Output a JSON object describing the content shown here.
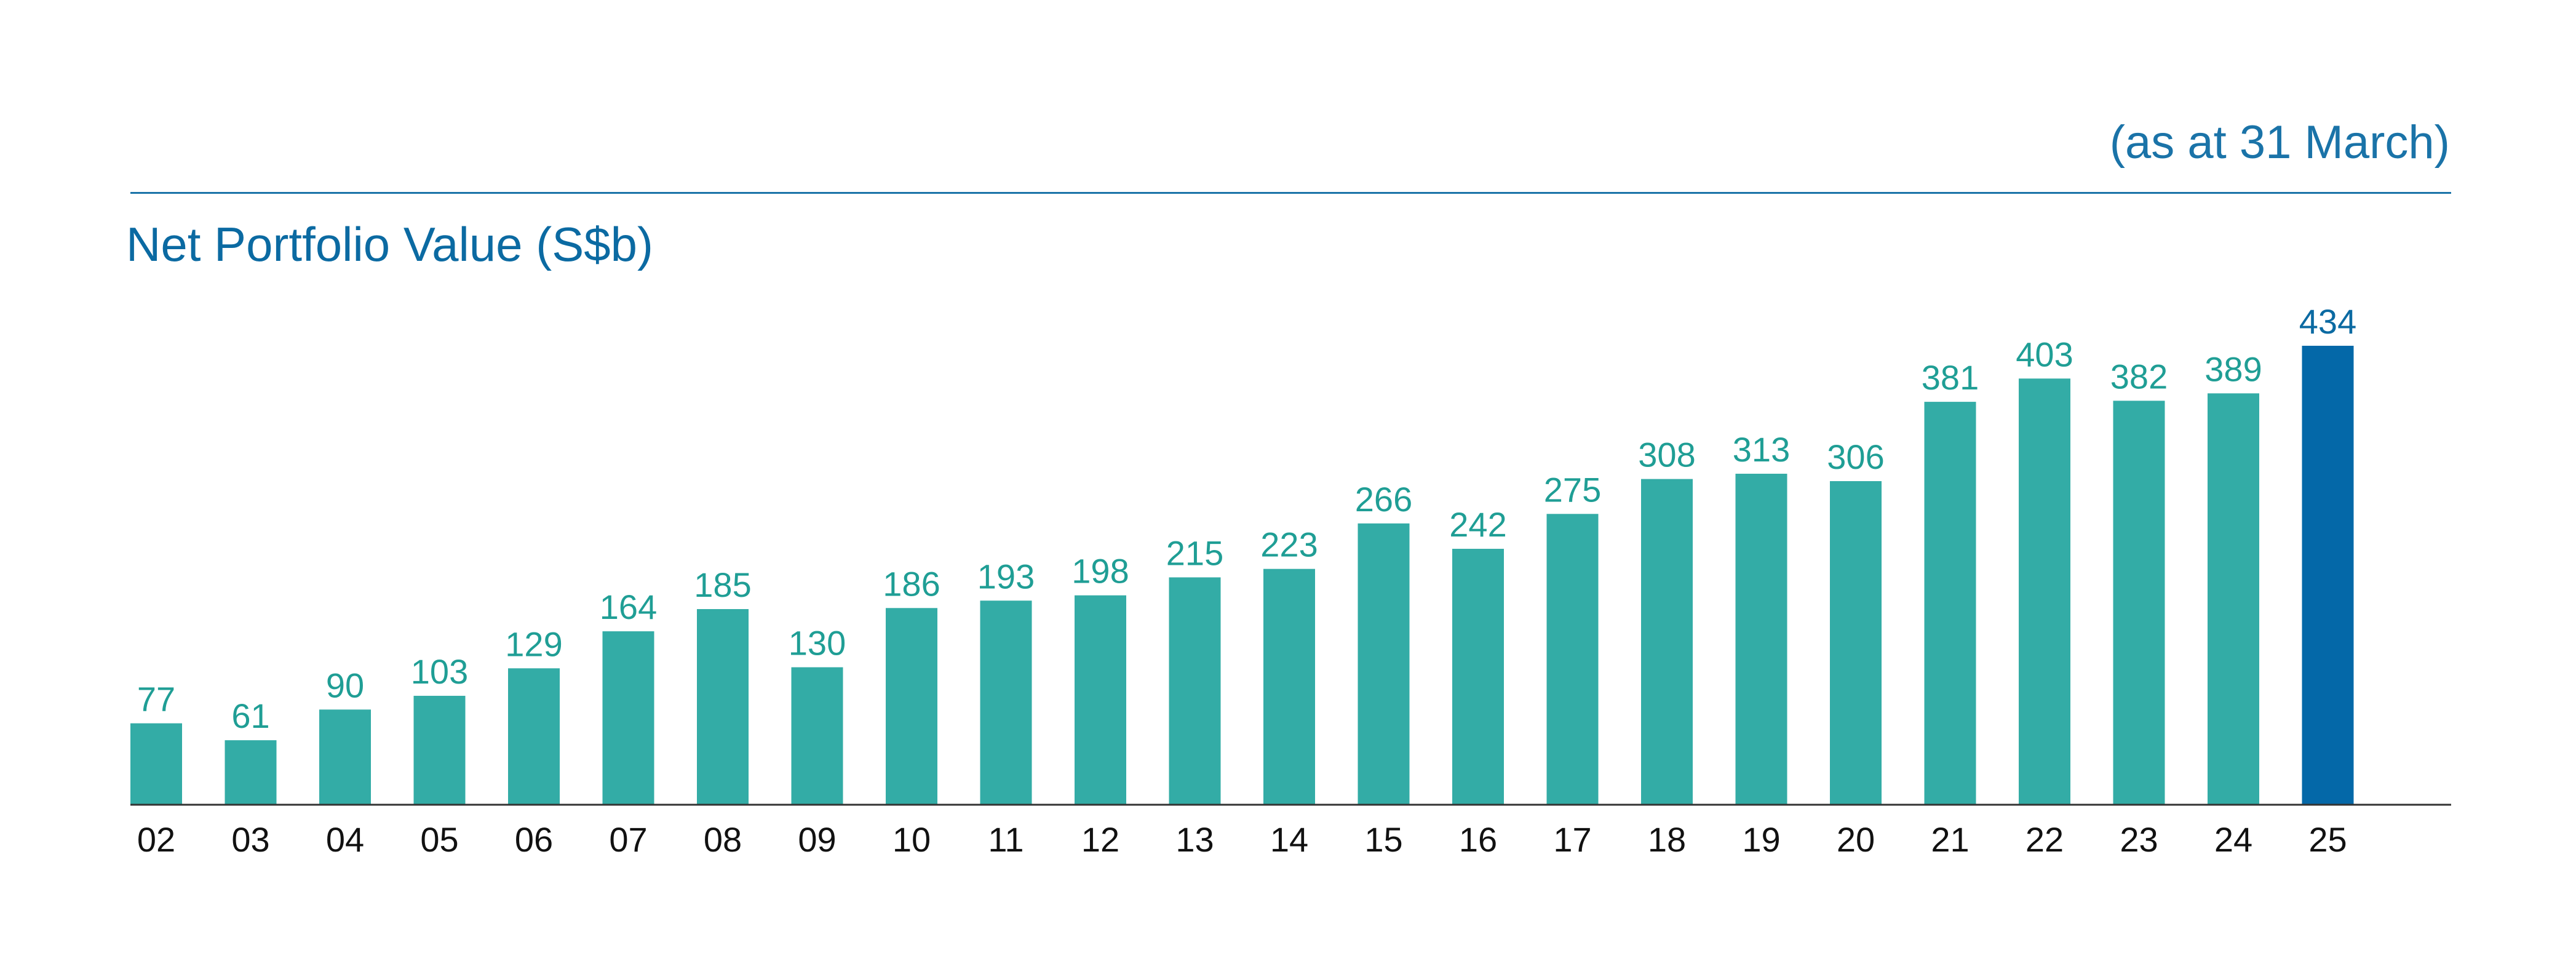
{
  "colors": {
    "bar": "#33aca6",
    "highlight": "#0468a8",
    "label": "#1f9e95",
    "highlight_label": "#0b6aa2",
    "axis": "#333333"
  },
  "chart_data": {
    "type": "bar",
    "title": "Net Portfolio Value (S$b)",
    "subtitle": "(as at 31 March)",
    "xlabel": "",
    "ylabel": "",
    "categories": [
      "02",
      "03",
      "04",
      "05",
      "06",
      "07",
      "08",
      "09",
      "10",
      "11",
      "12",
      "13",
      "14",
      "15",
      "16",
      "17",
      "18",
      "19",
      "20",
      "21",
      "22",
      "23",
      "24",
      "25"
    ],
    "values": [
      77,
      61,
      90,
      103,
      129,
      164,
      185,
      130,
      186,
      193,
      198,
      215,
      223,
      266,
      242,
      275,
      308,
      313,
      306,
      381,
      403,
      382,
      389,
      434
    ],
    "highlight_category": "25",
    "ylim": [
      0,
      434
    ],
    "grid": false
  }
}
